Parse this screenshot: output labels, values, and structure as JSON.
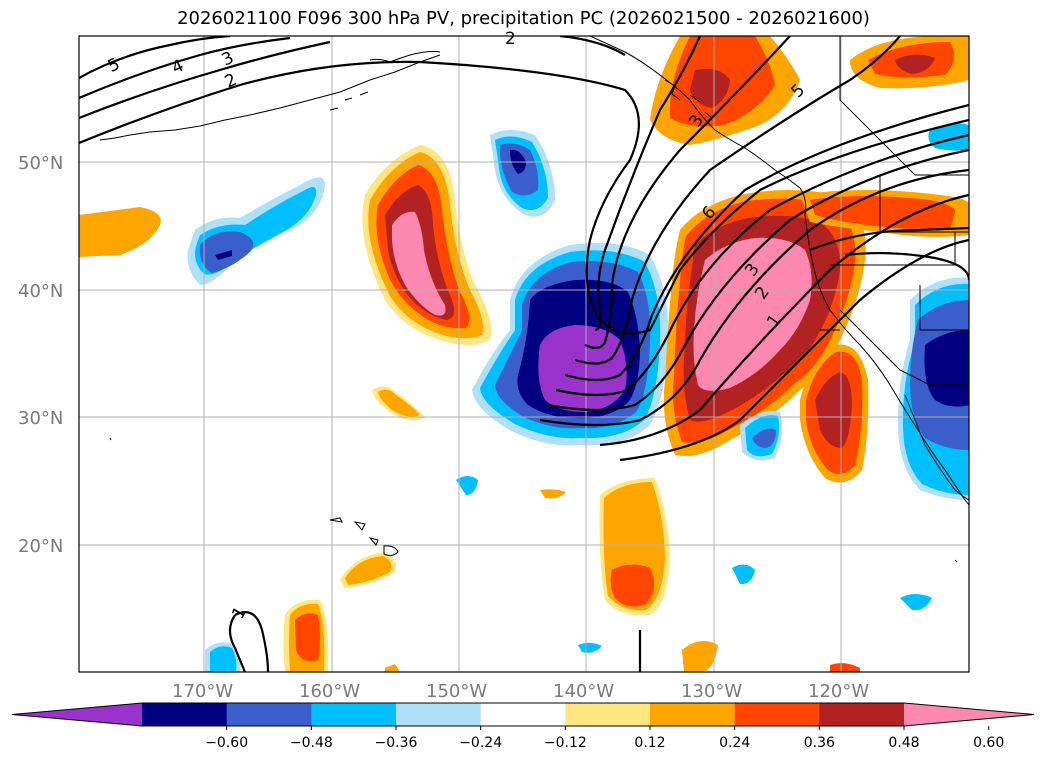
{
  "title": "2026021100 F096 300 hPa PV, precipitation PC (2026021500 - 2026021600)",
  "lat_labels": [
    "50°N",
    "40°N",
    "30°N",
    "20°N"
  ],
  "lon_labels": [
    "170°W",
    "160°W",
    "150°W",
    "140°W",
    "130°W",
    "120°W"
  ],
  "colorbar": {
    "ticks": [
      "−0.60",
      "−0.48",
      "−0.36",
      "−0.24",
      "−0.12",
      "0.12",
      "0.24",
      "0.36",
      "0.48",
      "0.60"
    ],
    "colors": [
      "#9933cc",
      "#000080",
      "#3a5fcd",
      "#00bfff",
      "#b0e0f8",
      "#ffffff",
      "#ffe680",
      "#ffa500",
      "#ff4500",
      "#b22222",
      "#ff88b0"
    ]
  },
  "contour_labels": [
    "5",
    "4",
    "3",
    "2",
    "2",
    "3",
    "5",
    "6",
    "3",
    "2",
    "1",
    "1"
  ]
}
